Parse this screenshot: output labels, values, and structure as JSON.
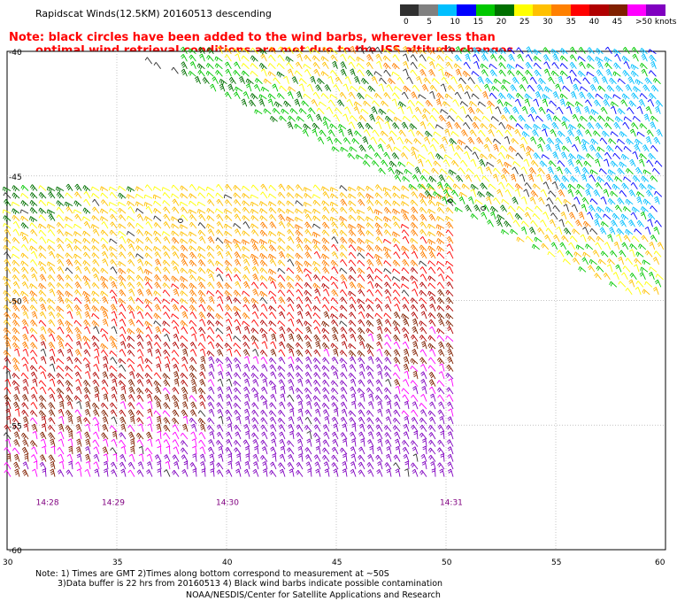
{
  "title": "Rapidscat Winds(12.5KM) 20160513 descending",
  "note": {
    "line1": "Note: black circles have been added to the wind barbs, wherever less than",
    "line2": "optimal wind retrieval conditions are met due to the ISS altitude changes."
  },
  "legend": {
    "labels": [
      "0",
      "5",
      "10",
      "15",
      "20",
      "25",
      "30",
      "35",
      "40",
      "45",
      ">50 knots"
    ],
    "colors": [
      "#303030",
      "#808080",
      "#00bfff",
      "#0000ff",
      "#00c800",
      "#007000",
      "#ffff00",
      "#ffc000",
      "#ff8000",
      "#ff0000",
      "#b00000",
      "#802000",
      "#ff00ff",
      "#8000c0"
    ]
  },
  "map": {
    "lat_labels": [
      "-40",
      "-45",
      "-50",
      "-55",
      "-60"
    ],
    "lon_labels": [
      "30",
      "35",
      "40",
      "45",
      "50",
      "55",
      "60"
    ],
    "times": [
      "14:28",
      "14:29",
      "14:30",
      "14:31"
    ],
    "time_color": "#800080",
    "grid_color": "#b0b0b0"
  },
  "footer": {
    "line1": "Note: 1) Times are GMT 2)Times along bottom correspond to measurement at ~50S",
    "line2": "3)Data buffer is 22 hrs from 20160513 4) Black wind barbs indicate possible contamination",
    "credit": "NOAA/NESDIS/Center for Satellite Applications and Research"
  }
}
